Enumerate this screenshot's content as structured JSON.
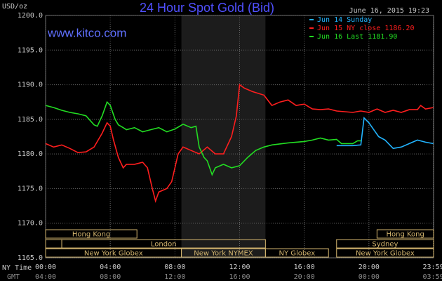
{
  "chart_data": {
    "type": "line",
    "title": "24 Hour Spot Gold (Bid)",
    "subtitle": "www.kitco.com",
    "timestamp": "June 16, 2015 19:23",
    "ylabel": "USD/oz",
    "xlabel": "NY Time",
    "x2label": "GMT",
    "xlim": [
      0,
      24
    ],
    "ylim": [
      1165,
      1200
    ],
    "grid": true,
    "yticks": [
      {
        "value": 1200,
        "label": "1200.0"
      },
      {
        "value": 1195,
        "label": "1195.0"
      },
      {
        "value": 1190,
        "label": "1190.0"
      },
      {
        "value": 1185,
        "label": "1185.0"
      },
      {
        "value": 1180,
        "label": "1180.0"
      },
      {
        "value": 1175,
        "label": "1175.0"
      },
      {
        "value": 1170,
        "label": "1170.0"
      },
      {
        "value": 1165,
        "label": "1165.0"
      }
    ],
    "xticks": [
      {
        "value": 0,
        "label": "00:00"
      },
      {
        "value": 4,
        "label": "04:00"
      },
      {
        "value": 8,
        "label": "08:00"
      },
      {
        "value": 12,
        "label": "12:00"
      },
      {
        "value": 16,
        "label": "16:00"
      },
      {
        "value": 20,
        "label": "20:00"
      },
      {
        "value": 23.98,
        "label": "23:59"
      }
    ],
    "x2ticks": [
      {
        "value": 0,
        "label": "04:00"
      },
      {
        "value": 4,
        "label": "08:00"
      },
      {
        "value": 8,
        "label": "12:00"
      },
      {
        "value": 12,
        "label": "16:00"
      },
      {
        "value": 16,
        "label": "20:00"
      },
      {
        "value": 20,
        "label": "00:00"
      },
      {
        "value": 23.98,
        "label": "03:59"
      }
    ],
    "sessions": [
      [
        {
          "label": "Hong Kong",
          "start": 0,
          "end": 5.65
        },
        {
          "label": "Hong Kong",
          "start": 20.5,
          "end": 24
        }
      ],
      [
        {
          "label": "London",
          "start": 1,
          "end": 13.6
        },
        {
          "label": "Sydney",
          "start": 18,
          "end": 24
        }
      ],
      [
        {
          "label": "New York Globex",
          "start": 0,
          "end": 8.4
        },
        {
          "label": "New York NYMEX",
          "start": 8.4,
          "end": 13.6,
          "shaded": true
        },
        {
          "label": "NY Globex",
          "start": 13.6,
          "end": 17.5
        },
        {
          "label": "New York Globex",
          "start": 18,
          "end": 24
        }
      ]
    ],
    "series": [
      {
        "name": "Jun 14 Sunday",
        "color": "#22b4ff",
        "x": [
          18,
          19,
          19.5,
          19.7,
          20,
          20.3,
          20.6,
          21,
          21.5,
          22,
          22.5,
          23,
          23.5,
          23.98
        ],
        "values": [
          1181.2,
          1181.2,
          1181.3,
          1185.2,
          1184.5,
          1183.5,
          1182.5,
          1182.0,
          1180.8,
          1181.0,
          1181.5,
          1182.0,
          1181.7,
          1181.5
        ]
      },
      {
        "name": "Jun 15 NY close 1186.20",
        "color": "#ff1e1e",
        "x": [
          0,
          0.5,
          1,
          1.5,
          2,
          2.5,
          3,
          3.5,
          3.8,
          4,
          4.2,
          4.5,
          4.8,
          5,
          5.5,
          6,
          6.3,
          6.6,
          6.8,
          7,
          7.5,
          7.8,
          8,
          8.2,
          8.5,
          9,
          9.5,
          10,
          10.5,
          11,
          11.5,
          11.8,
          12,
          12.3,
          12.8,
          13.5,
          14,
          14.5,
          15,
          15.5,
          16,
          16.5,
          17,
          17.5,
          18,
          19,
          19.5,
          20,
          20.5,
          21,
          21.5,
          22,
          22.5,
          23,
          23.2,
          23.5,
          23.98
        ],
        "values": [
          1181.5,
          1181.0,
          1181.3,
          1180.8,
          1180.2,
          1180.3,
          1181.0,
          1183.0,
          1184.5,
          1184.0,
          1182.0,
          1179.5,
          1178.0,
          1178.5,
          1178.5,
          1178.8,
          1178.0,
          1175.0,
          1173.2,
          1174.5,
          1175.0,
          1176.0,
          1178.0,
          1180.0,
          1181.0,
          1180.5,
          1180.0,
          1181.0,
          1180.0,
          1180.0,
          1182.5,
          1185.5,
          1190.0,
          1189.5,
          1189.0,
          1188.5,
          1187.0,
          1187.5,
          1187.8,
          1187.0,
          1187.2,
          1186.5,
          1186.4,
          1186.5,
          1186.2,
          1186.0,
          1186.2,
          1186.0,
          1186.5,
          1186.0,
          1186.3,
          1186.0,
          1186.4,
          1186.4,
          1187.0,
          1186.5,
          1186.7
        ]
      },
      {
        "name": "Jun 16 Last 1181.90",
        "color": "#22dd22",
        "x": [
          0,
          0.5,
          1,
          1.5,
          2,
          2.5,
          3,
          3.2,
          3.5,
          3.8,
          4,
          4.3,
          4.5,
          4.8,
          5,
          5.5,
          6,
          6.5,
          7,
          7.5,
          8,
          8.5,
          9,
          9.3,
          9.5,
          9.8,
          10,
          10.3,
          10.5,
          11,
          11.5,
          12,
          12.5,
          13,
          13.5,
          14,
          15,
          16,
          16.5,
          17,
          17.5,
          18,
          18.3,
          19,
          19.3,
          19.5
        ],
        "values": [
          1187.0,
          1186.7,
          1186.3,
          1186.0,
          1185.8,
          1185.5,
          1184.2,
          1184.0,
          1185.5,
          1187.5,
          1187.0,
          1185.0,
          1184.2,
          1183.8,
          1183.5,
          1183.8,
          1183.2,
          1183.5,
          1183.8,
          1183.2,
          1183.6,
          1184.3,
          1183.8,
          1184.0,
          1181.0,
          1179.5,
          1179.0,
          1177.0,
          1178.0,
          1178.5,
          1178.0,
          1178.3,
          1179.5,
          1180.5,
          1181.0,
          1181.3,
          1181.6,
          1181.8,
          1182.0,
          1182.3,
          1182.0,
          1182.1,
          1181.5,
          1181.5,
          1181.9,
          1181.9
        ]
      }
    ]
  }
}
